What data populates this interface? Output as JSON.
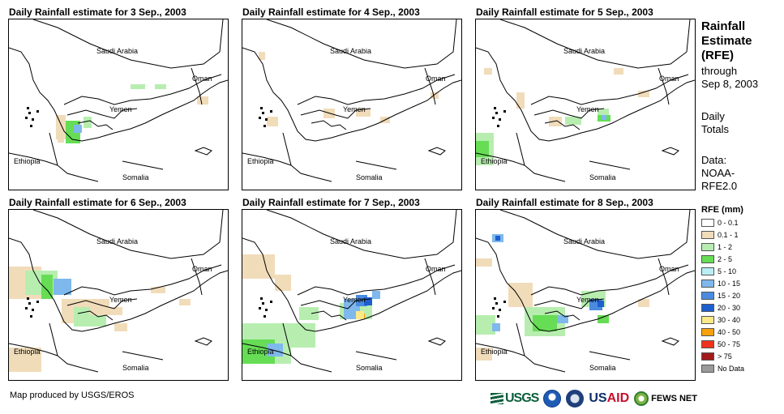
{
  "legend": {
    "title": "RFE (mm)",
    "items": [
      {
        "label": "0 - 0.1",
        "color": "#ffffff"
      },
      {
        "label": "0.1 - 1",
        "color": "#f1dcba"
      },
      {
        "label": "1 - 2",
        "color": "#b7eeb0"
      },
      {
        "label": "2 - 5",
        "color": "#66dd55"
      },
      {
        "label": "5 - 10",
        "color": "#b9eef6"
      },
      {
        "label": "10 - 15",
        "color": "#7fb8ec"
      },
      {
        "label": "15 - 20",
        "color": "#4a8be0"
      },
      {
        "label": "20 - 30",
        "color": "#1d5fd0"
      },
      {
        "label": "30 - 40",
        "color": "#fde98a"
      },
      {
        "label": "40 - 50",
        "color": "#f8a10b"
      },
      {
        "label": "50 - 75",
        "color": "#f0321c"
      },
      {
        "label": "> 75",
        "color": "#a21a1a"
      },
      {
        "label": "No Data",
        "color": "#9a9a9a"
      }
    ]
  },
  "sidebar": {
    "title_lines": [
      "Rainfall",
      "Estimate",
      "(RFE)"
    ],
    "sub_lines": [
      "through",
      "Sep 8, 2003"
    ],
    "totals_lines": [
      "Daily",
      "Totals"
    ],
    "data_lines": [
      "Data:",
      "NOAA-",
      "RFE2.0"
    ]
  },
  "labels": {
    "saudi": "Saudi Arabia",
    "oman": "Oman",
    "yemen": "Yemen",
    "ethiopia": "Ethiopia",
    "somalia": "Somalia"
  },
  "panels": [
    {
      "title": "Daily Rainfall estimate for 3 Sep., 2003"
    },
    {
      "title": "Daily Rainfall estimate for 4 Sep., 2003"
    },
    {
      "title": "Daily Rainfall estimate for 5 Sep., 2003"
    },
    {
      "title": "Daily Rainfall estimate for 6 Sep., 2003"
    },
    {
      "title": "Daily Rainfall estimate for 7 Sep., 2003"
    },
    {
      "title": "Daily Rainfall estimate for 8 Sep., 2003"
    }
  ],
  "footer": {
    "credit": "Map produced by USGS/EROS",
    "logos": {
      "usgs": "USGS",
      "usaid_a": "US",
      "usaid_b": "AID",
      "fews": "FEWS NET"
    }
  }
}
